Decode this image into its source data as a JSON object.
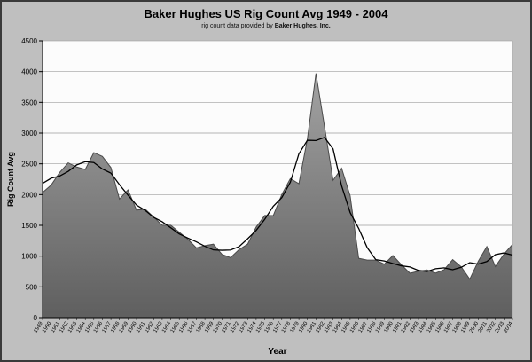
{
  "title": "Baker Hughes US Rig Count Avg 1949 - 2004",
  "subtitle": {
    "prefix": "rig count data provided by ",
    "bold": "Baker Hughes, Inc."
  },
  "colors": {
    "background": "#bfbfbf",
    "frame": "#3a3a3a",
    "plot_bg": "#fcfcfc",
    "grid": "#9e9e9e",
    "axis": "#000000",
    "area_top": "#a3a3a3",
    "area_bottom": "#5f5f5f",
    "area_edge": "#4a4a4a",
    "line": "#000000",
    "text": "#000000"
  },
  "chart_data": {
    "type": "area",
    "title": "Baker Hughes US Rig Count Avg 1949 - 2004",
    "xlabel": "Year",
    "ylabel": "Rig Count Avg",
    "ylim": [
      0,
      4500
    ],
    "ytick_step": 500,
    "grid": true,
    "legend": "none",
    "categories": [
      1949,
      1950,
      1951,
      1952,
      1953,
      1954,
      1955,
      1956,
      1957,
      1958,
      1959,
      1960,
      1961,
      1962,
      1963,
      1964,
      1965,
      1966,
      1967,
      1968,
      1969,
      1970,
      1971,
      1972,
      1973,
      1974,
      1975,
      1976,
      1977,
      1978,
      1979,
      1980,
      1981,
      1982,
      1983,
      1984,
      1985,
      1986,
      1987,
      1988,
      1989,
      1990,
      1991,
      1992,
      1993,
      1994,
      1995,
      1996,
      1997,
      1998,
      1999,
      2000,
      2001,
      2002,
      2003,
      2004
    ],
    "series": [
      {
        "id": "rig-count-area",
        "type": "area",
        "values": [
          2034,
          2154,
          2359,
          2516,
          2448,
          2409,
          2683,
          2621,
          2439,
          1928,
          2076,
          1748,
          1764,
          1636,
          1502,
          1502,
          1388,
          1275,
          1135,
          1170,
          1194,
          1028,
          976,
          1107,
          1194,
          1472,
          1660,
          1658,
          2001,
          2259,
          2177,
          2909,
          3970,
          3105,
          2232,
          2428,
          1980,
          964,
          936,
          936,
          869,
          1010,
          860,
          721,
          754,
          775,
          723,
          779,
          943,
          827,
          625,
          918,
          1156,
          830,
          1032,
          1190
        ]
      },
      {
        "id": "trend-line",
        "type": "line",
        "values": [
          2182,
          2266,
          2302,
          2377,
          2483,
          2535,
          2520,
          2416,
          2349,
          2162,
          1991,
          1830,
          1745,
          1630,
          1558,
          1461,
          1360,
          1294,
          1232,
          1160,
          1101,
          1095,
          1100,
          1155,
          1282,
          1418,
          1597,
          1810,
          1951,
          2201,
          2663,
          2884,
          2879,
          2929,
          2743,
          2142,
          1708,
          1449,
          1137,
          943,
          922,
          879,
          843,
          824,
          767,
          750,
          795,
          809,
          779,
          818,
          894,
          871,
          912,
          1025,
          1052,
          1017
        ]
      }
    ]
  }
}
